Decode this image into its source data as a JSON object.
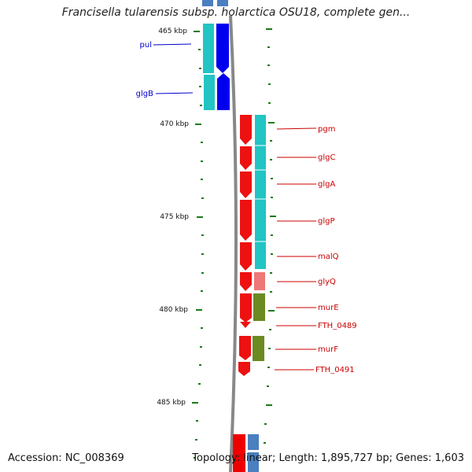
{
  "title": "Francisella tularensis subsp. holarctica OSU18, complete gen...",
  "footer": {
    "accession": "Accession: NC_008369",
    "summary": "Topology: linear; Length: 1,895,727 bp; Genes: 1,603"
  },
  "colors": {
    "tick": "#1a7a1a",
    "backbone": "#888888",
    "left_label": "#0000cc",
    "right_label": "#cc0000"
  },
  "ticks": [
    "465 kbp",
    "470 kbp",
    "475 kbp",
    "480 kbp",
    "485 kbp"
  ],
  "left_genes": [
    {
      "name": "pul",
      "strand": "minus"
    },
    {
      "name": "glgB",
      "strand": "minus"
    }
  ],
  "right_genes": [
    {
      "name": "pgm",
      "strand": "minus"
    },
    {
      "name": "glgC",
      "strand": "minus"
    },
    {
      "name": "glgA",
      "strand": "minus"
    },
    {
      "name": "glgP",
      "strand": "minus"
    },
    {
      "name": "malQ",
      "strand": "minus"
    },
    {
      "name": "glyQ",
      "strand": "minus"
    },
    {
      "name": "murE",
      "strand": "minus"
    },
    {
      "name": "FTH_0489",
      "strand": "minus"
    },
    {
      "name": "murF",
      "strand": "minus"
    },
    {
      "name": "FTH_0491",
      "strand": "minus"
    }
  ]
}
